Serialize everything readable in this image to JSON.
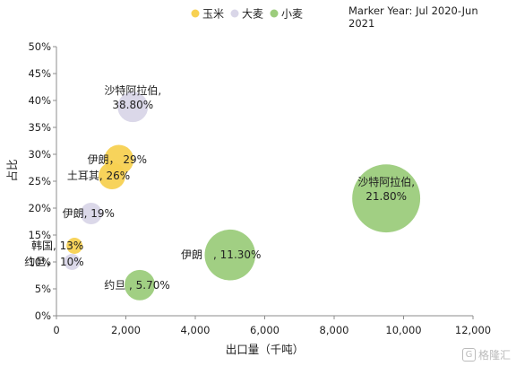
{
  "chart_data": {
    "type": "scatter",
    "title": "",
    "note_line1": "Marker Year: Jul 2020-Jun",
    "note_line2": "2021",
    "xlabel": "出口量（千吨）",
    "ylabel": "占比",
    "xlim": [
      0,
      12000
    ],
    "ylim": [
      0,
      50
    ],
    "x_ticks": [
      "0",
      "2,000",
      "4,000",
      "6,000",
      "8,000",
      "10,000",
      "12,000"
    ],
    "y_ticks": [
      "0%",
      "5%",
      "10%",
      "15%",
      "20%",
      "25%",
      "30%",
      "35%",
      "40%",
      "45%",
      "50%"
    ],
    "legend_position": "top",
    "series": [
      {
        "name": "玉米",
        "color": "#f7d152",
        "points": [
          {
            "label": "伊朗， 29%",
            "x": 1800,
            "y": 29,
            "size": 1700
          },
          {
            "label": "土耳其, 26%",
            "x": 1600,
            "y": 26,
            "size": 1400
          },
          {
            "label": "韩国, 13%",
            "x": 520,
            "y": 13,
            "size": 500
          }
        ]
      },
      {
        "name": "大麦",
        "color": "#d9d6e8",
        "points": [
          {
            "label": "沙特阿拉伯,\n38.80%",
            "x": 2200,
            "y": 38.8,
            "size": 1800
          },
          {
            "label": "伊朗, 19%",
            "x": 1000,
            "y": 19,
            "size": 900
          },
          {
            "label": "约旦， 10%",
            "x": 450,
            "y": 10,
            "size": 500
          }
        ]
      },
      {
        "name": "小麦",
        "color": "#9ccc7c",
        "points": [
          {
            "label": "沙特阿拉伯,\n21.80%",
            "x": 9500,
            "y": 21.8,
            "size": 9000
          },
          {
            "label": "伊朗　, 11.30%",
            "x": 5000,
            "y": 11.3,
            "size": 5000
          },
          {
            "label": "约旦 , 5.70%",
            "x": 2400,
            "y": 5.7,
            "size": 1800
          }
        ]
      }
    ]
  },
  "watermark": "格隆汇",
  "watermark_icon": "G"
}
